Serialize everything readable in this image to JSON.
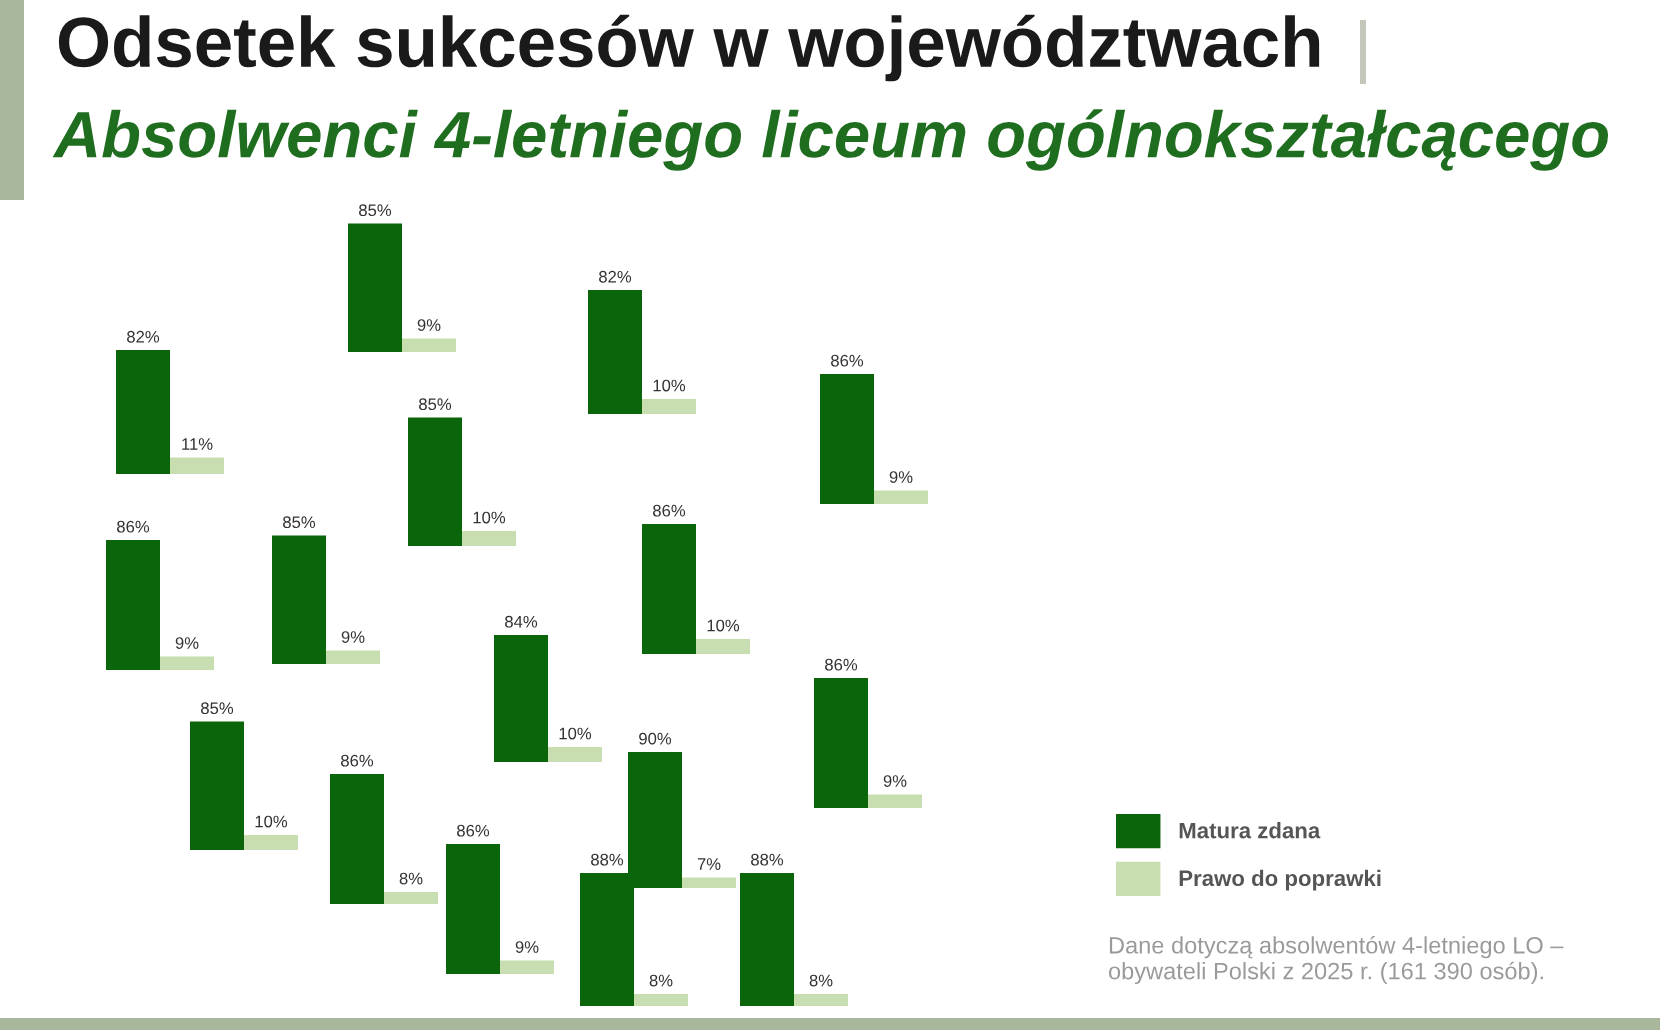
{
  "chart_data": [
    {
      "type": "bar",
      "title": "Odsetek sukcesów w województwach",
      "subtitle": "Absolwenci 4-letniego liceum ogólnokształcącego",
      "categories": [
        null
      ],
      "series": [
        {
          "name": "Matura zdana",
          "color": "#0b650b",
          "values": [
            85
          ],
          "value_labels": [
            "85%"
          ]
        },
        {
          "name": "Prawo do poprawki",
          "color": "#c8ddb0",
          "values": [
            9
          ],
          "value_labels": [
            "9%"
          ]
        }
      ],
      "legend": "bottom right"
    },
    {
      "type": "bar",
      "categories": [
        null
      ],
      "series": [
        {
          "color": "#0b650b",
          "values": [
            82
          ],
          "value_labels": [
            "82%"
          ]
        },
        {
          "color": "#c8ddb0",
          "values": [
            10
          ],
          "value_labels": [
            "10%"
          ]
        }
      ]
    },
    {
      "type": "bar",
      "categories": [
        null
      ],
      "series": [
        {
          "color": "#0b650b",
          "values": [
            82
          ],
          "value_labels": [
            "82%"
          ]
        },
        {
          "color": "#c8ddb0",
          "values": [
            11
          ],
          "value_labels": [
            "11%"
          ]
        }
      ]
    },
    {
      "type": "bar",
      "categories": [
        null
      ],
      "series": [
        {
          "color": "#0b650b",
          "values": [
            86
          ],
          "value_labels": [
            "86%"
          ]
        },
        {
          "color": "#c8ddb0",
          "values": [
            9
          ],
          "value_labels": [
            "9%"
          ]
        }
      ]
    },
    {
      "type": "bar",
      "categories": [
        null
      ],
      "series": [
        {
          "color": "#0b650b",
          "values": [
            85
          ],
          "value_labels": [
            "85%"
          ]
        },
        {
          "color": "#c8ddb0",
          "values": [
            10
          ],
          "value_labels": [
            "10%"
          ]
        }
      ]
    },
    {
      "type": "bar",
      "categories": [
        null
      ],
      "series": [
        {
          "color": "#0b650b",
          "values": [
            86
          ],
          "value_labels": [
            "86%"
          ]
        },
        {
          "color": "#c8ddb0",
          "values": [
            10
          ],
          "value_labels": [
            "10%"
          ]
        }
      ]
    },
    {
      "type": "bar",
      "categories": [
        null
      ],
      "series": [
        {
          "color": "#0b650b",
          "values": [
            85
          ],
          "value_labels": [
            "85%"
          ]
        },
        {
          "color": "#c8ddb0",
          "values": [
            9
          ],
          "value_labels": [
            "9%"
          ]
        }
      ]
    },
    {
      "type": "bar",
      "categories": [
        null
      ],
      "series": [
        {
          "color": "#0b650b",
          "values": [
            86
          ],
          "value_labels": [
            "86%"
          ]
        },
        {
          "color": "#c8ddb0",
          "values": [
            9
          ],
          "value_labels": [
            "9%"
          ]
        }
      ]
    },
    {
      "type": "bar",
      "categories": [
        null
      ],
      "series": [
        {
          "color": "#0b650b",
          "values": [
            84
          ],
          "value_labels": [
            "84%"
          ]
        },
        {
          "color": "#c8ddb0",
          "values": [
            10
          ],
          "value_labels": [
            "10%"
          ]
        }
      ]
    },
    {
      "type": "bar",
      "categories": [
        null
      ],
      "series": [
        {
          "color": "#0b650b",
          "values": [
            86
          ],
          "value_labels": [
            "86%"
          ]
        },
        {
          "color": "#c8ddb0",
          "values": [
            9
          ],
          "value_labels": [
            "9%"
          ]
        }
      ]
    },
    {
      "type": "bar",
      "categories": [
        null
      ],
      "series": [
        {
          "color": "#0b650b",
          "values": [
            85
          ],
          "value_labels": [
            "85%"
          ]
        },
        {
          "color": "#c8ddb0",
          "values": [
            10
          ],
          "value_labels": [
            "10%"
          ]
        }
      ]
    },
    {
      "type": "bar",
      "categories": [
        null
      ],
      "series": [
        {
          "color": "#0b650b",
          "values": [
            90
          ],
          "value_labels": [
            "90%"
          ]
        },
        {
          "color": "#c8ddb0",
          "values": [
            7
          ],
          "value_labels": [
            "7%"
          ]
        }
      ]
    },
    {
      "type": "bar",
      "categories": [
        null
      ],
      "series": [
        {
          "color": "#0b650b",
          "values": [
            86
          ],
          "value_labels": [
            "86%"
          ]
        },
        {
          "color": "#c8ddb0",
          "values": [
            8
          ],
          "value_labels": [
            "8%"
          ]
        }
      ]
    },
    {
      "type": "bar",
      "categories": [
        null
      ],
      "series": [
        {
          "color": "#0b650b",
          "values": [
            86
          ],
          "value_labels": [
            "86%"
          ]
        },
        {
          "color": "#c8ddb0",
          "values": [
            9
          ],
          "value_labels": [
            "9%"
          ]
        }
      ]
    },
    {
      "type": "bar",
      "categories": [
        null
      ],
      "series": [
        {
          "color": "#0b650b",
          "values": [
            88
          ],
          "value_labels": [
            "88%"
          ]
        },
        {
          "color": "#c8ddb0",
          "values": [
            8
          ],
          "value_labels": [
            "8%"
          ]
        }
      ]
    },
    {
      "type": "bar",
      "categories": [
        null
      ],
      "series": [
        {
          "color": "#0b650b",
          "values": [
            88
          ],
          "value_labels": [
            "88%"
          ]
        },
        {
          "color": "#c8ddb0",
          "values": [
            8
          ],
          "value_labels": [
            "8%"
          ]
        }
      ],
      "annotations": [
        "Dane dotyczą absolwentów 4-letniego LO – obywateli Polski z 2025 r. (161 390 osób)."
      ]
    }
  ]
}
